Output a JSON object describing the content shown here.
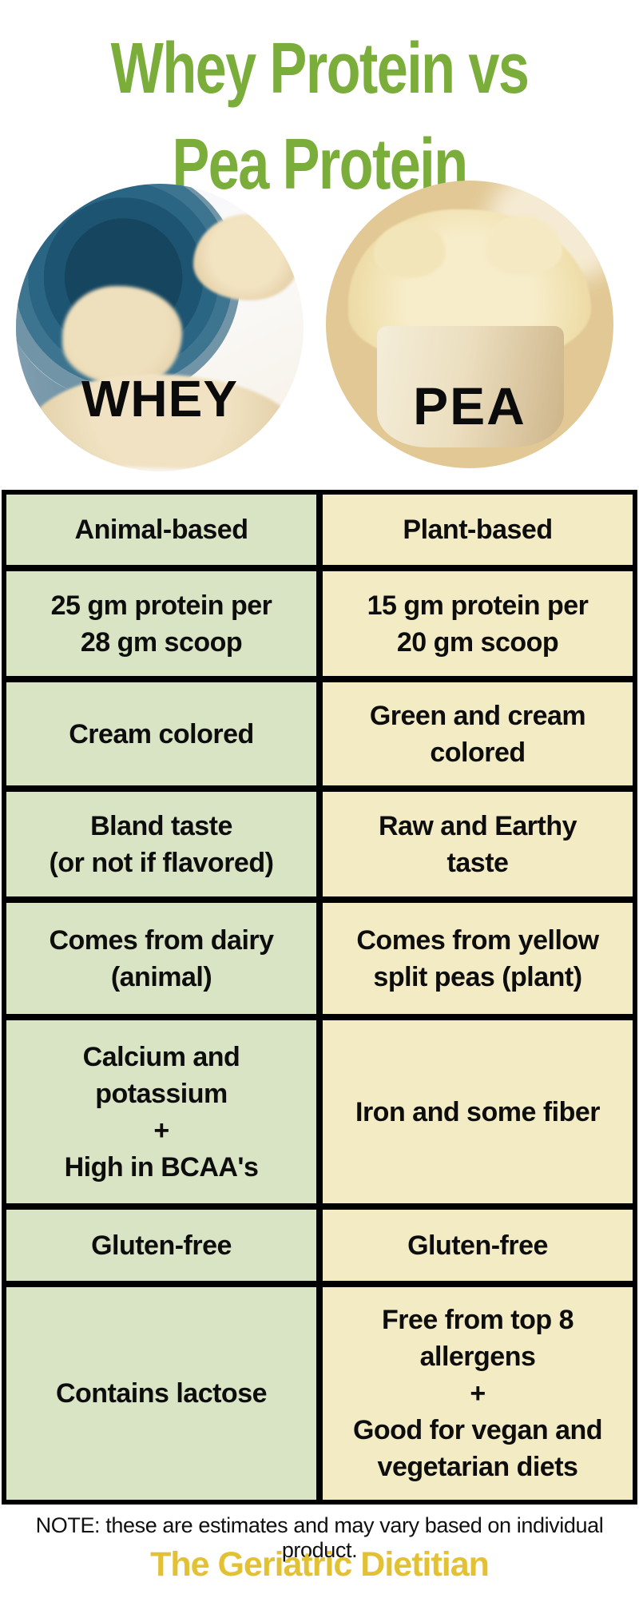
{
  "title": {
    "line1": "Whey Protein vs",
    "line2": "Pea Protein"
  },
  "images": {
    "whey_label": "WHEY",
    "pea_label": "PEA"
  },
  "table": {
    "rows": [
      {
        "left": "Animal-based",
        "right": "Plant-based"
      },
      {
        "left": "25 gm protein per\n28 gm scoop",
        "right": "15 gm protein per\n20 gm scoop"
      },
      {
        "left": "Cream colored",
        "right": "Green and cream\ncolored"
      },
      {
        "left": "Bland taste\n(or not if flavored)",
        "right": "Raw and Earthy\ntaste"
      },
      {
        "left": "Comes from dairy\n(animal)",
        "right": "Comes from yellow\nsplit peas (plant)"
      },
      {
        "left": "Calcium and\npotassium\n+\nHigh in BCAA's",
        "right": "Iron and some fiber"
      },
      {
        "left": "Gluten-free",
        "right": "Gluten-free"
      },
      {
        "left": "Contains lactose",
        "right": "Free from top 8\nallergens\n+\nGood for vegan and\nvegetarian diets"
      }
    ]
  },
  "footer": {
    "note": "NOTE: these are estimates and may vary based on individual product.",
    "brand": "The Geriatric Dietitian"
  },
  "colors": {
    "title_green": "#7BAD3B",
    "cell_green": "#D9E4C4",
    "cell_yellow": "#F2EBC3",
    "table_border": "#000000",
    "brand_gold": "#E3C134",
    "text_black": "#0D0D0D"
  }
}
